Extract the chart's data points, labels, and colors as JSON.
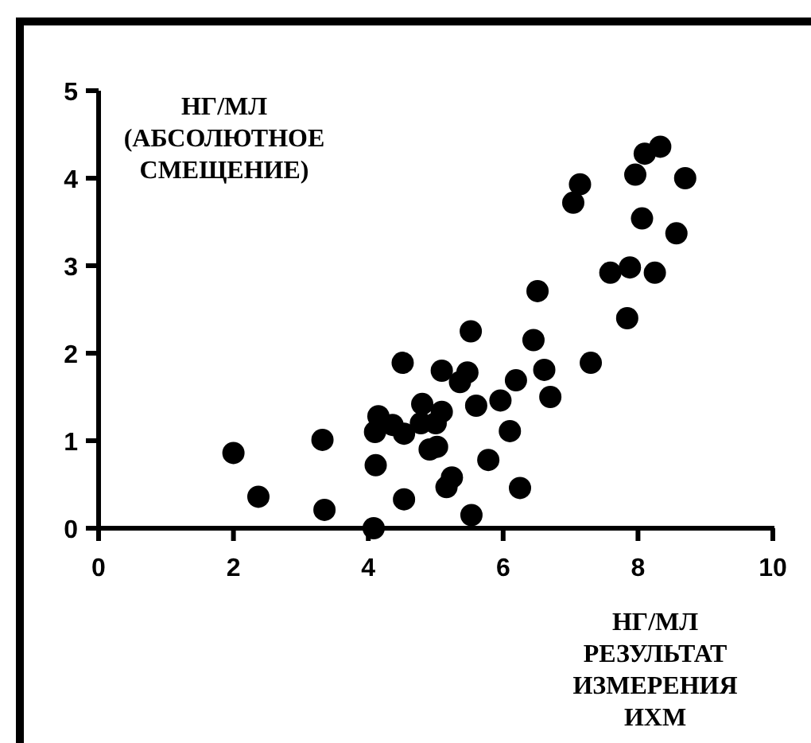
{
  "chart_data": {
    "type": "scatter",
    "xlabel": "НГ/МЛ\nРЕЗУЛЬТАТ\nИЗМЕРЕНИЯ\nИХМ",
    "ylabel": "НГ/МЛ\n(АБСОЛЮТНОЕ\nСМЕЩЕНИЕ)",
    "xlim": [
      0,
      10
    ],
    "ylim": [
      0,
      5
    ],
    "xticks": [
      0,
      2,
      4,
      6,
      8,
      10
    ],
    "yticks": [
      0,
      1,
      2,
      3,
      4,
      5
    ],
    "grid": false,
    "marker": "circle",
    "series": [
      {
        "color": "#000000",
        "x": [
          2.0,
          2.37,
          3.32,
          3.35,
          4.08,
          4.1,
          4.15,
          4.11,
          4.36,
          4.51,
          4.53,
          4.53,
          4.8,
          4.78,
          4.91,
          5.02,
          5.0,
          5.09,
          5.09,
          5.16,
          5.24,
          5.36,
          5.47,
          5.52,
          5.53,
          5.6,
          5.78,
          5.96,
          6.1,
          6.19,
          6.25,
          6.45,
          6.51,
          6.61,
          6.7,
          7.04,
          7.14,
          7.3,
          7.59,
          7.84,
          7.88,
          7.96,
          8.06,
          8.1,
          8.25,
          8.33,
          8.57,
          8.7
        ],
        "values": [
          0.86,
          0.36,
          1.01,
          0.21,
          0.0,
          1.1,
          1.28,
          0.72,
          1.18,
          1.89,
          1.08,
          0.33,
          1.42,
          1.2,
          0.9,
          0.93,
          1.2,
          1.33,
          1.8,
          0.47,
          0.58,
          1.67,
          1.78,
          2.25,
          0.15,
          1.4,
          0.78,
          1.46,
          1.11,
          1.69,
          0.46,
          2.15,
          2.71,
          1.81,
          1.5,
          3.72,
          3.93,
          1.89,
          2.92,
          2.4,
          2.98,
          4.04,
          3.54,
          4.28,
          2.92,
          4.36,
          3.37,
          4.0
        ]
      }
    ]
  }
}
